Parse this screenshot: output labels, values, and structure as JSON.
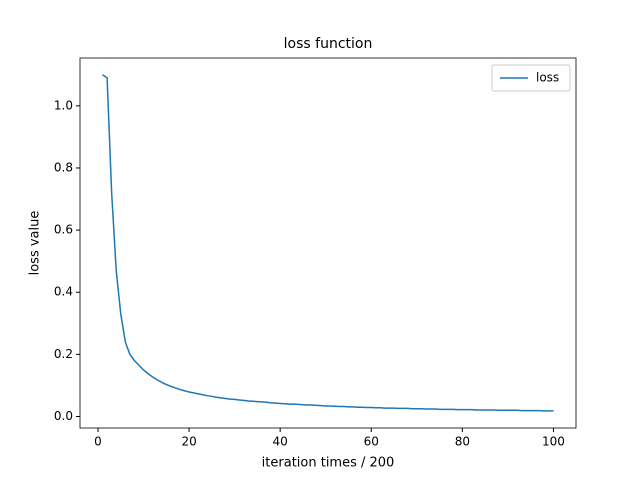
{
  "chart_data": {
    "type": "line",
    "title": "loss function",
    "x_label": "iteration times / 200",
    "y_label": "loss value",
    "x": [
      1,
      2,
      3,
      4,
      5,
      6,
      7,
      8,
      9,
      10,
      11,
      12,
      13,
      14,
      15,
      16,
      17,
      18,
      19,
      20,
      21,
      22,
      23,
      24,
      25,
      26,
      27,
      28,
      29,
      30,
      31,
      32,
      33,
      34,
      35,
      36,
      37,
      38,
      39,
      40,
      41,
      42,
      43,
      44,
      45,
      46,
      47,
      48,
      49,
      50,
      51,
      52,
      53,
      54,
      55,
      56,
      57,
      58,
      59,
      60,
      61,
      62,
      63,
      64,
      65,
      66,
      67,
      68,
      69,
      70,
      71,
      72,
      73,
      74,
      75,
      76,
      77,
      78,
      79,
      80,
      81,
      82,
      83,
      84,
      85,
      86,
      87,
      88,
      89,
      90,
      91,
      92,
      93,
      94,
      95,
      96,
      97,
      98,
      99,
      100
    ],
    "series": [
      {
        "name": "loss",
        "color": "#1f77b4",
        "values": [
          1.1,
          1.09,
          0.72,
          0.47,
          0.33,
          0.24,
          0.2,
          0.18,
          0.165,
          0.15,
          0.138,
          0.127,
          0.118,
          0.11,
          0.103,
          0.097,
          0.092,
          0.087,
          0.083,
          0.079,
          0.076,
          0.073,
          0.07,
          0.067,
          0.065,
          0.062,
          0.06,
          0.058,
          0.056,
          0.055,
          0.053,
          0.052,
          0.05,
          0.049,
          0.048,
          0.047,
          0.046,
          0.044,
          0.043,
          0.042,
          0.041,
          0.04,
          0.04,
          0.039,
          0.038,
          0.037,
          0.037,
          0.036,
          0.035,
          0.034,
          0.034,
          0.033,
          0.032,
          0.032,
          0.031,
          0.031,
          0.03,
          0.03,
          0.029,
          0.029,
          0.028,
          0.028,
          0.027,
          0.027,
          0.027,
          0.026,
          0.026,
          0.026,
          0.025,
          0.025,
          0.025,
          0.024,
          0.024,
          0.024,
          0.023,
          0.023,
          0.023,
          0.023,
          0.022,
          0.022,
          0.022,
          0.022,
          0.021,
          0.021,
          0.021,
          0.021,
          0.021,
          0.02,
          0.02,
          0.02,
          0.02,
          0.02,
          0.019,
          0.019,
          0.019,
          0.019,
          0.019,
          0.018,
          0.018,
          0.018
        ]
      }
    ],
    "xlim": [
      -3.95,
      104.95
    ],
    "xticks": [
      0,
      20,
      40,
      60,
      80,
      100
    ],
    "ylim": [
      -0.037,
      1.154
    ],
    "yticks": [
      {
        "value": 0,
        "label": "0.0"
      },
      0.2,
      0.4,
      0.6,
      0.8,
      {
        "value": 1,
        "label": "1.0"
      }
    ],
    "legend": "upper right"
  }
}
